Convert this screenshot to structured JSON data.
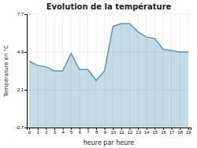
{
  "chart_data": {
    "type": "area",
    "title": "Evolution de la température",
    "x_label": "heure par heure",
    "y_label": "Température en °C",
    "x": [
      0,
      1,
      2,
      3,
      4,
      5,
      6,
      7,
      8,
      9,
      10,
      11,
      12,
      13,
      14,
      15,
      16,
      17,
      18,
      19
    ],
    "values": [
      4.2,
      3.9,
      3.8,
      3.5,
      3.5,
      4.8,
      3.6,
      3.6,
      2.8,
      3.5,
      6.8,
      7.0,
      7.0,
      6.4,
      6.0,
      5.9,
      5.1,
      5.0,
      4.9,
      4.9
    ],
    "color": "#5599bb",
    "xlim": [
      -0.3,
      19.3
    ],
    "xticks": [
      0,
      1,
      2,
      3,
      4,
      5,
      6,
      7,
      8,
      9,
      10,
      11,
      12,
      13,
      14,
      15,
      16,
      17,
      18,
      19
    ],
    "ylim": [
      -0.7,
      7.7
    ],
    "yticks": [
      -0.7,
      2.1,
      4.9,
      7.7
    ],
    "grid": true
  }
}
